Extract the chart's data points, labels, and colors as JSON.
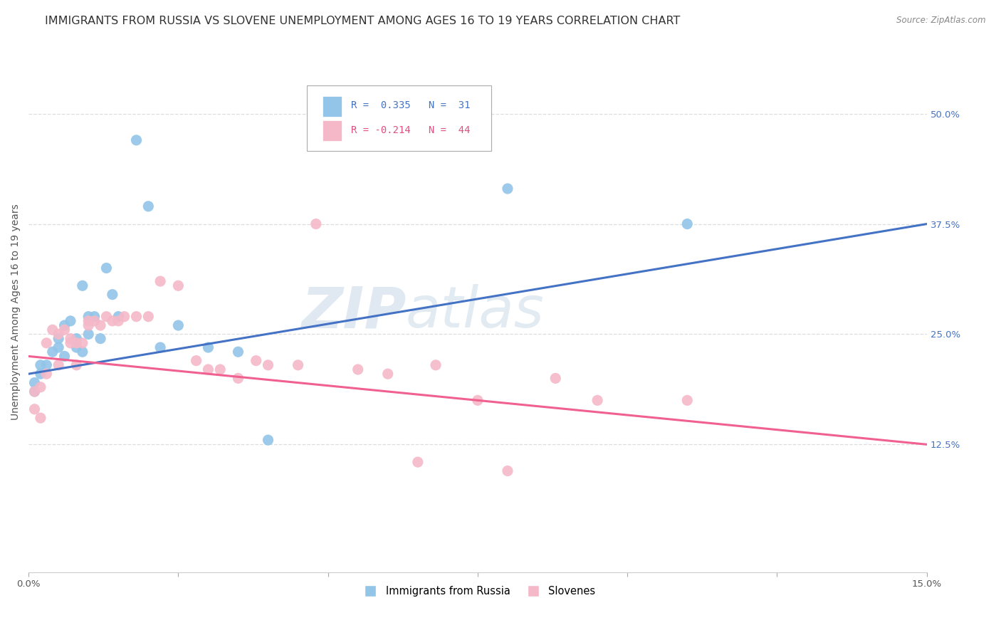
{
  "title": "IMMIGRANTS FROM RUSSIA VS SLOVENE UNEMPLOYMENT AMONG AGES 16 TO 19 YEARS CORRELATION CHART",
  "source": "Source: ZipAtlas.com",
  "ylabel": "Unemployment Among Ages 16 to 19 years",
  "xlim": [
    0.0,
    0.15
  ],
  "ylim": [
    -0.02,
    0.57
  ],
  "xticks": [
    0.0,
    0.025,
    0.05,
    0.075,
    0.1,
    0.125,
    0.15
  ],
  "xticklabels": [
    "0.0%",
    "",
    "",
    "",
    "",
    "",
    "15.0%"
  ],
  "ytick_labels_right": [
    "50.0%",
    "37.5%",
    "25.0%",
    "12.5%"
  ],
  "ytick_values_right": [
    0.5,
    0.375,
    0.25,
    0.125
  ],
  "blue_R": "0.335",
  "blue_N": "31",
  "pink_R": "-0.214",
  "pink_N": "44",
  "blue_color": "#92C5E8",
  "pink_color": "#F5B8C8",
  "blue_line_color": "#4472C4",
  "pink_line_color": "#F06090",
  "legend_label_blue": "Immigrants from Russia",
  "legend_label_pink": "Slovenes",
  "watermark_zip": "ZIP",
  "watermark_atlas": "atlas",
  "blue_scatter_x": [
    0.001,
    0.001,
    0.002,
    0.002,
    0.003,
    0.004,
    0.005,
    0.005,
    0.006,
    0.006,
    0.007,
    0.008,
    0.008,
    0.009,
    0.009,
    0.01,
    0.01,
    0.011,
    0.012,
    0.013,
    0.014,
    0.015,
    0.018,
    0.02,
    0.022,
    0.025,
    0.03,
    0.035,
    0.04,
    0.08,
    0.11
  ],
  "blue_scatter_y": [
    0.195,
    0.185,
    0.215,
    0.205,
    0.215,
    0.23,
    0.235,
    0.245,
    0.225,
    0.26,
    0.265,
    0.235,
    0.245,
    0.23,
    0.305,
    0.25,
    0.27,
    0.27,
    0.245,
    0.325,
    0.295,
    0.27,
    0.47,
    0.395,
    0.235,
    0.26,
    0.235,
    0.23,
    0.13,
    0.415,
    0.375
  ],
  "pink_scatter_x": [
    0.001,
    0.001,
    0.002,
    0.002,
    0.003,
    0.003,
    0.004,
    0.005,
    0.005,
    0.006,
    0.007,
    0.007,
    0.008,
    0.008,
    0.009,
    0.01,
    0.01,
    0.011,
    0.012,
    0.013,
    0.014,
    0.015,
    0.016,
    0.018,
    0.02,
    0.022,
    0.025,
    0.028,
    0.03,
    0.032,
    0.035,
    0.038,
    0.04,
    0.045,
    0.048,
    0.055,
    0.06,
    0.065,
    0.068,
    0.075,
    0.08,
    0.088,
    0.095,
    0.11
  ],
  "pink_scatter_y": [
    0.185,
    0.165,
    0.19,
    0.155,
    0.205,
    0.24,
    0.255,
    0.25,
    0.215,
    0.255,
    0.245,
    0.24,
    0.24,
    0.215,
    0.24,
    0.265,
    0.26,
    0.265,
    0.26,
    0.27,
    0.265,
    0.265,
    0.27,
    0.27,
    0.27,
    0.31,
    0.305,
    0.22,
    0.21,
    0.21,
    0.2,
    0.22,
    0.215,
    0.215,
    0.375,
    0.21,
    0.205,
    0.105,
    0.215,
    0.175,
    0.095,
    0.2,
    0.175,
    0.175
  ],
  "grid_color": "#DDDDDD",
  "background_color": "#FFFFFF",
  "title_fontsize": 11.5,
  "axis_fontsize": 10,
  "tick_fontsize": 9.5,
  "blue_line_x0": 0.0,
  "blue_line_y0": 0.205,
  "blue_line_x1": 0.15,
  "blue_line_y1": 0.375,
  "pink_line_x0": 0.0,
  "pink_line_y0": 0.225,
  "pink_line_x1": 0.15,
  "pink_line_y1": 0.125
}
